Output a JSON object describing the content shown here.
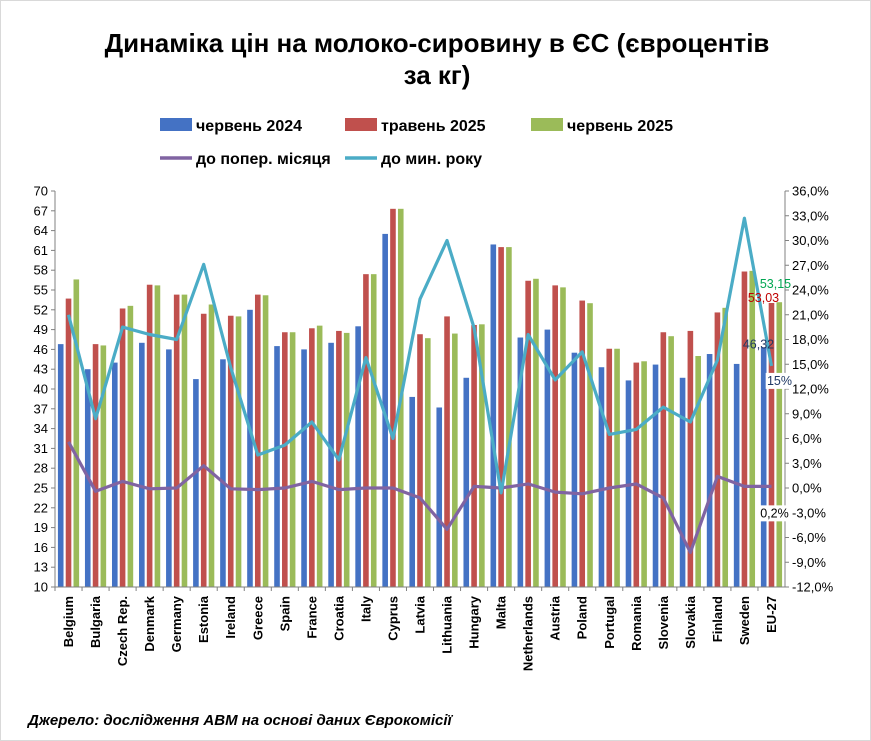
{
  "chart_data": {
    "type": "bar",
    "title_line1": "Динаміка цін на молоко-сировину в ЄС (євроцентів",
    "title_line2": "за кг)",
    "source": "Джерело: дослідження АВМ на основі даних Єврокомісії",
    "categories": [
      "Belgium",
      "Bulgaria",
      "Czech Rep.",
      "Denmark",
      "Germany",
      "Estonia",
      "Ireland",
      "Greece",
      "Spain",
      "France",
      "Croatia",
      "Italy",
      "Cyprus",
      "Latvia",
      "Lithuania",
      "Hungary",
      "Malta",
      "Netherlands",
      "Austria",
      "Poland",
      "Portugal",
      "Romania",
      "Slovenia",
      "Slovakia",
      "Finland",
      "Sweden",
      "EU-27"
    ],
    "series": [
      {
        "name": "червень 2024",
        "color": "#4472c4",
        "axis": "left",
        "values": [
          46.8,
          43.0,
          44.0,
          47.0,
          46.0,
          41.5,
          44.5,
          52.0,
          46.5,
          46.0,
          47.0,
          49.5,
          63.5,
          38.8,
          37.2,
          41.7,
          61.9,
          47.8,
          49.0,
          45.5,
          43.3,
          41.3,
          43.7,
          41.7,
          45.3,
          43.8,
          46.32
        ]
      },
      {
        "name": "травень 2025",
        "color": "#c0504d",
        "axis": "left",
        "values": [
          53.7,
          46.8,
          52.2,
          55.8,
          54.3,
          51.4,
          51.1,
          54.3,
          48.6,
          49.2,
          48.8,
          57.4,
          67.3,
          48.3,
          51.0,
          49.7,
          61.5,
          56.4,
          55.7,
          53.4,
          46.1,
          44.0,
          48.6,
          48.8,
          51.6,
          57.8,
          53.03
        ]
      },
      {
        "name": "червень 2025",
        "color": "#9bbb59",
        "axis": "left",
        "values": [
          56.6,
          46.6,
          52.6,
          55.7,
          54.3,
          52.8,
          51.0,
          54.2,
          48.6,
          49.6,
          48.5,
          57.4,
          67.3,
          47.7,
          48.4,
          49.8,
          61.5,
          56.7,
          55.4,
          53.0,
          46.1,
          44.2,
          48.0,
          45.0,
          52.3,
          57.9,
          53.15
        ]
      },
      {
        "name": "до попер. місяця",
        "color": "#8064a2",
        "axis": "right",
        "values": [
          5.6,
          -0.4,
          0.8,
          -0.1,
          0.0,
          2.7,
          -0.1,
          -0.2,
          0.0,
          0.8,
          -0.2,
          0.0,
          0.0,
          -1.2,
          -5.0,
          0.2,
          0.0,
          0.5,
          -0.5,
          -0.7,
          0.0,
          0.5,
          -1.2,
          -7.8,
          1.4,
          0.2,
          0.2
        ]
      },
      {
        "name": "до мин. року",
        "color": "#4bacc6",
        "axis": "right",
        "values": [
          21.0,
          8.4,
          19.5,
          18.6,
          18.0,
          27.1,
          14.6,
          4.0,
          5.2,
          8.0,
          3.4,
          15.8,
          6.0,
          22.9,
          30.0,
          19.4,
          -0.6,
          18.6,
          13.1,
          16.5,
          6.5,
          7.1,
          9.8,
          8.0,
          15.5,
          32.7,
          14.8
        ]
      }
    ],
    "y_left": {
      "min": 10,
      "max": 70,
      "ticks": [
        "70",
        "67",
        "64",
        "61",
        "58",
        "55",
        "52",
        "49",
        "46",
        "43",
        "40",
        "37",
        "34",
        "31",
        "28",
        "25",
        "22",
        "19",
        "16",
        "13",
        "10"
      ]
    },
    "y_right": {
      "min": -12,
      "max": 36,
      "ticks": [
        "36,0%",
        "33,0%",
        "30,0%",
        "27,0%",
        "24,0%",
        "21,0%",
        "18,0%",
        "15,0%",
        "12,0%",
        "9,0%",
        "6,0%",
        "3,0%",
        "0,0%",
        "-3,0%",
        "-6,0%",
        "-9,0%",
        "-12,0%"
      ]
    },
    "data_labels": {
      "eu_jun2024": "46,32",
      "eu_may2025": "53,03",
      "eu_jun2025": "53,15",
      "eu_yoy": "15%",
      "eu_mom": "0,2%"
    },
    "legend_position": "top",
    "grid": false
  }
}
